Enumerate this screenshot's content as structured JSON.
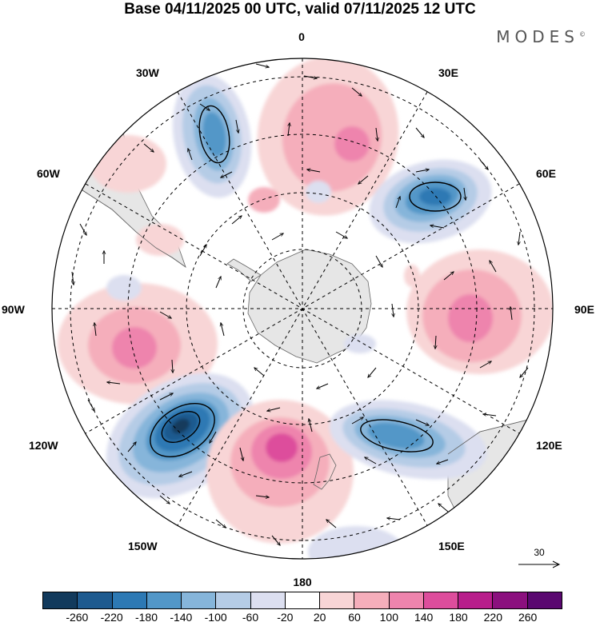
{
  "header": {
    "title": "Base 04/11/2025 00 UTC, valid 07/11/2025 12 UTC",
    "brand": "MODES",
    "brand_mark": "©"
  },
  "map": {
    "longitude_labels": {
      "n": "0",
      "ne": "30E",
      "nne": "60E",
      "e": "90E",
      "se": "120E",
      "sse": "150E",
      "s": "180",
      "ssw": "150W",
      "sw": "120W",
      "w": "90W",
      "nnw": "60W",
      "nw": "30W"
    },
    "wind_reference": "30",
    "colors": {
      "land": "#e6e6e6",
      "coast": "#666666"
    }
  },
  "colorbar": {
    "ticks": [
      "-260",
      "-220",
      "-180",
      "-140",
      "-100",
      "-60",
      "-20",
      "20",
      "60",
      "100",
      "140",
      "180",
      "220",
      "260"
    ],
    "colors": [
      "#123a5c",
      "#1e5a8f",
      "#2d79b4",
      "#5297c8",
      "#86b5da",
      "#b5cce6",
      "#dcdff0",
      "#ffffff",
      "#f8d5d6",
      "#f5aebb",
      "#ee84ad",
      "#dd4d9c",
      "#b81e8b",
      "#8b107e",
      "#5a0870"
    ]
  }
}
